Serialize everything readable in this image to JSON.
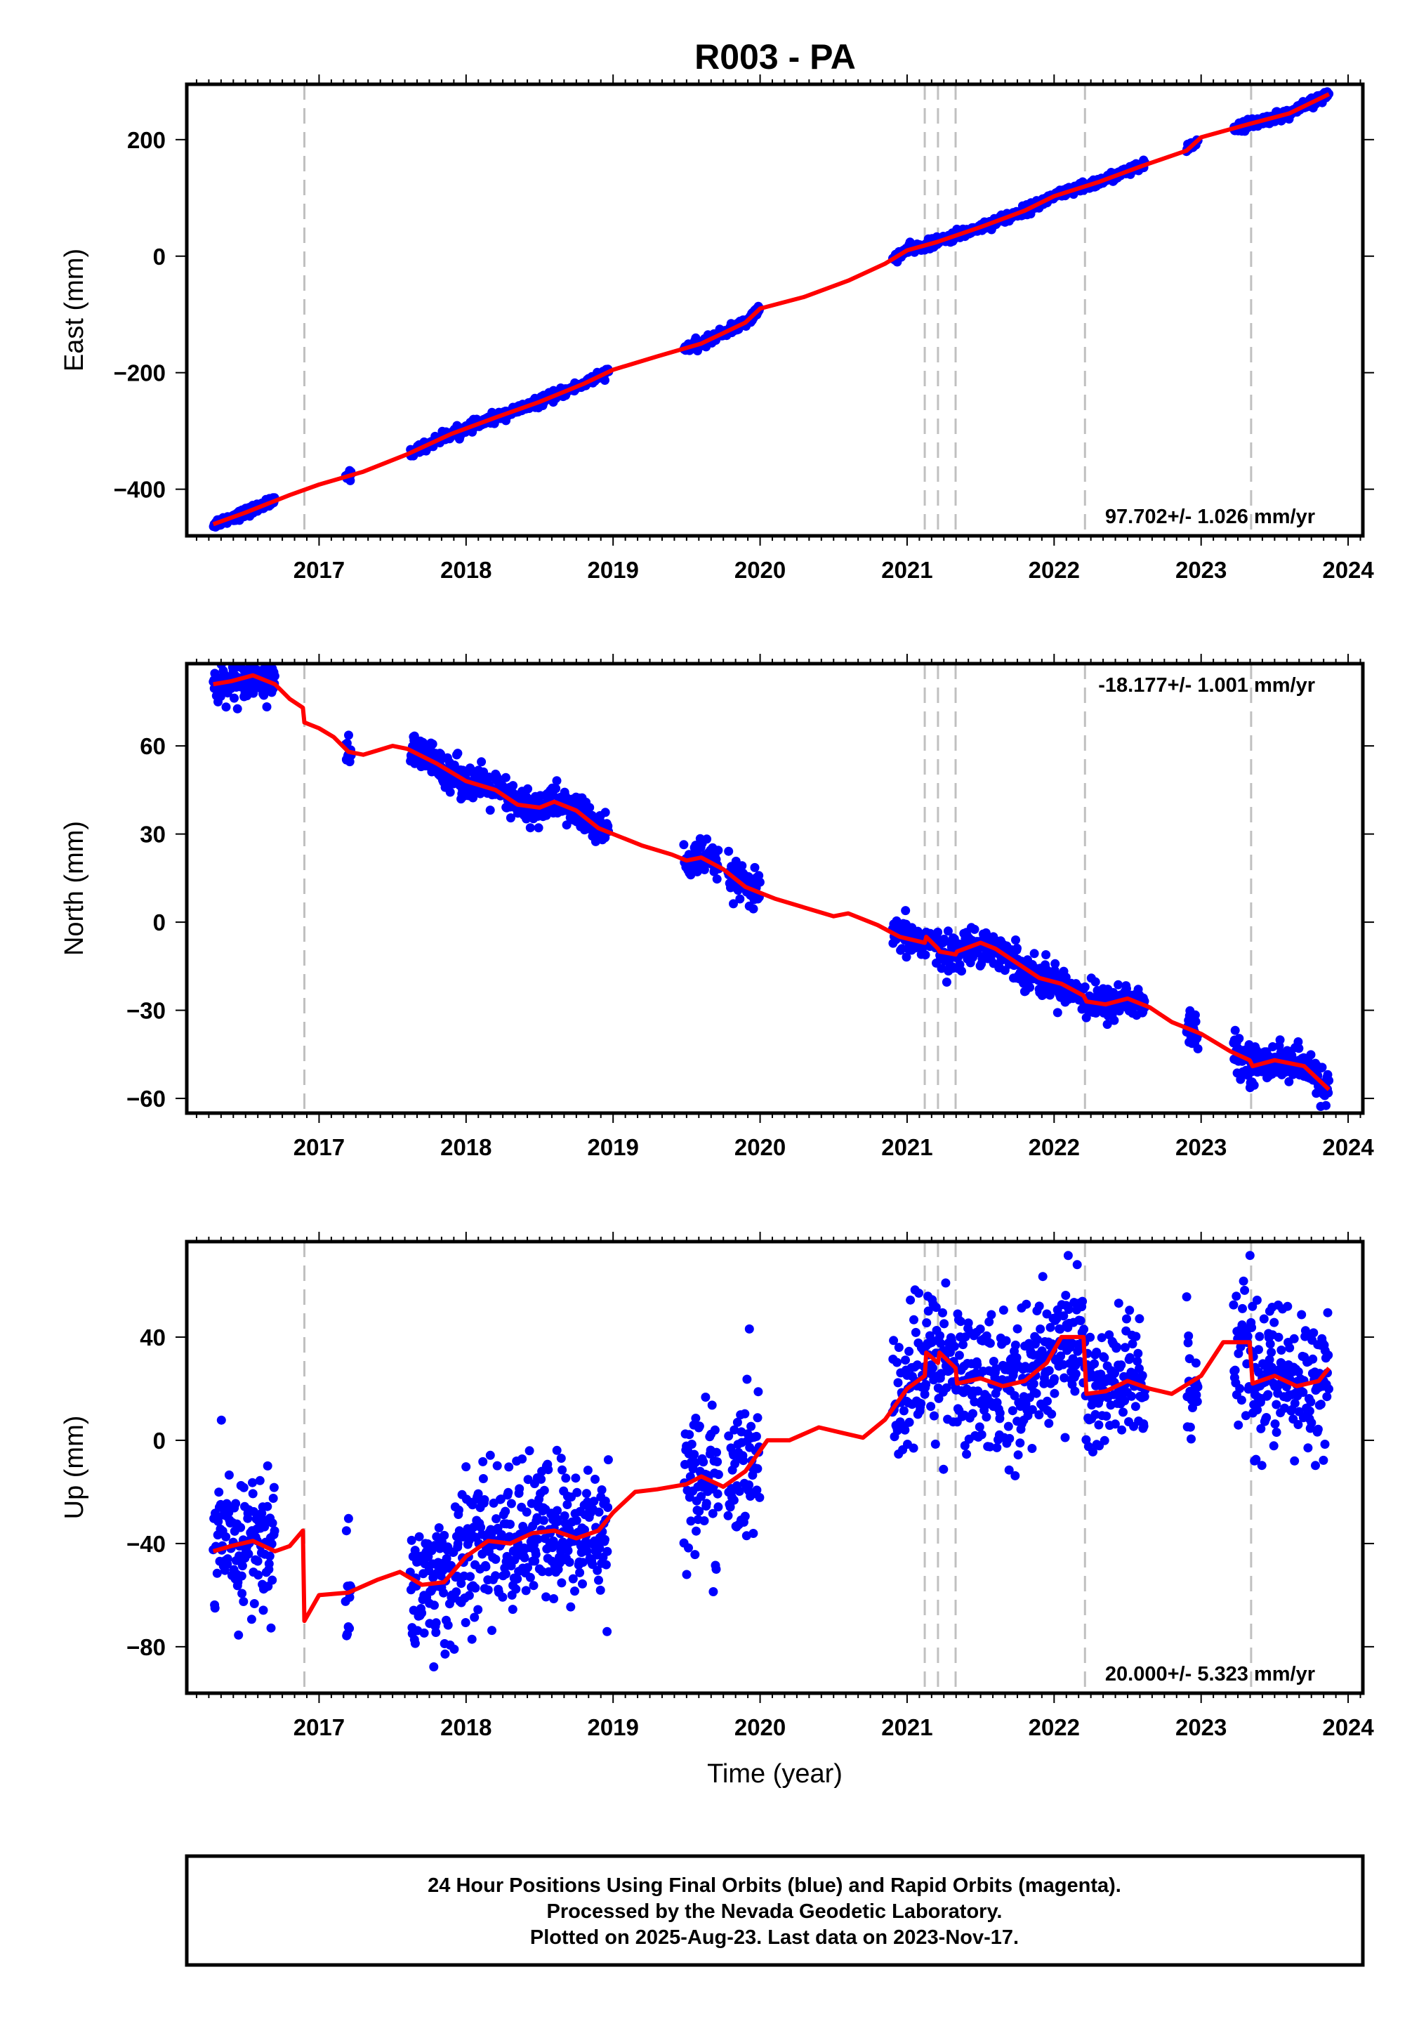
{
  "title": "R003 - PA",
  "colors": {
    "final_orbits": "#0000ff",
    "model": "#ff0000",
    "event_lines": "#c0c0c0",
    "frame": "#000000"
  },
  "footer": {
    "line1": "24 Hour Positions Using Final Orbits (blue) and Rapid Orbits (magenta).",
    "line2": "Processed by the Nevada Geodetic Laboratory.",
    "line3": "Plotted on 2025-Aug-23. Last data on 2023-Nov-17."
  },
  "chart_data": [
    {
      "type": "scatter",
      "component": "east",
      "ylabel": "East (mm)",
      "xlabel": "",
      "rate_label": "97.702+/- 1.026 mm/yr",
      "xlim": [
        2016.1,
        2024.1
      ],
      "ylim": [
        -480,
        295
      ],
      "xticks": [
        2017,
        2018,
        2019,
        2020,
        2021,
        2022,
        2023,
        2024
      ],
      "yticks": [
        -400,
        -200,
        0,
        200
      ],
      "event_lines": [
        2016.9,
        2021.12,
        2021.21,
        2021.33,
        2022.21,
        2023.34
      ],
      "series": [
        {
          "kind": "model",
          "x": [
            2016.28,
            2016.5,
            2016.8,
            2017.0,
            2017.3,
            2017.6,
            2017.9,
            2018.2,
            2018.5,
            2018.8,
            2019.0,
            2019.3,
            2019.6,
            2019.9,
            2020.0,
            2020.3,
            2020.6,
            2020.85,
            2021.0,
            2021.2,
            2021.5,
            2021.8,
            2022.0,
            2022.3,
            2022.6,
            2022.9,
            2023.0,
            2023.3,
            2023.6,
            2023.87
          ],
          "y": [
            -460,
            -440,
            -410,
            -392,
            -370,
            -340,
            -305,
            -277,
            -250,
            -219,
            -195,
            -172,
            -150,
            -114,
            -90,
            -70,
            -42,
            -13,
            10,
            24,
            50,
            78,
            103,
            127,
            155,
            181,
            204,
            225,
            245,
            278
          ]
        },
        {
          "kind": "observations",
          "segments": [
            [
              2016.28,
              2016.7
            ],
            [
              2017.18,
              2017.22
            ],
            [
              2017.62,
              2018.97
            ],
            [
              2019.48,
              2020.0
            ],
            [
              2020.9,
              2022.62
            ],
            [
              2022.9,
              2022.98
            ],
            [
              2023.22,
              2023.87
            ]
          ],
          "count": 1400,
          "scatter_mm": 4
        }
      ]
    },
    {
      "type": "scatter",
      "component": "north",
      "ylabel": "North (mm)",
      "xlabel": "",
      "rate_label": "-18.177+/- 1.001 mm/yr",
      "xlim": [
        2016.1,
        2024.1
      ],
      "ylim": [
        -65,
        88
      ],
      "xticks": [
        2017,
        2018,
        2019,
        2020,
        2021,
        2022,
        2023,
        2024
      ],
      "yticks": [
        -60,
        -30,
        0,
        30,
        60
      ],
      "event_lines": [
        2016.9,
        2021.12,
        2021.21,
        2021.33,
        2022.21,
        2023.34
      ],
      "series": [
        {
          "kind": "model",
          "x": [
            2016.28,
            2016.4,
            2016.55,
            2016.7,
            2016.8,
            2016.89,
            2016.9,
            2017.0,
            2017.1,
            2017.2,
            2017.3,
            2017.5,
            2017.6,
            2017.8,
            2018.0,
            2018.2,
            2018.35,
            2018.5,
            2018.6,
            2018.75,
            2018.9,
            2019.0,
            2019.2,
            2019.4,
            2019.5,
            2019.6,
            2019.75,
            2019.9,
            2020.0,
            2020.1,
            2020.3,
            2020.5,
            2020.6,
            2020.8,
            2020.95,
            2021.12,
            2021.13,
            2021.21,
            2021.22,
            2021.33,
            2021.34,
            2021.5,
            2021.6,
            2021.75,
            2021.9,
            2022.05,
            2022.2,
            2022.22,
            2022.35,
            2022.5,
            2022.65,
            2022.8,
            2023.0,
            2023.2,
            2023.33,
            2023.35,
            2023.5,
            2023.7,
            2023.87
          ],
          "y": [
            81,
            82,
            84,
            81,
            76,
            73,
            68,
            66,
            63,
            58,
            57,
            60,
            59,
            54,
            48,
            45,
            40,
            39,
            41,
            38,
            32,
            30,
            26,
            23,
            21,
            22,
            18,
            12,
            10,
            8,
            5,
            2,
            3,
            -1,
            -5,
            -7,
            -5,
            -9,
            -10,
            -11,
            -10,
            -7,
            -9,
            -14,
            -19,
            -21,
            -25,
            -27,
            -28,
            -26,
            -29,
            -34,
            -38,
            -44,
            -47,
            -49,
            -47,
            -49,
            -57
          ]
        },
        {
          "kind": "observations",
          "segments": [
            [
              2016.28,
              2016.7
            ],
            [
              2017.18,
              2017.22
            ],
            [
              2017.62,
              2018.97
            ],
            [
              2019.48,
              2019.72
            ],
            [
              2019.78,
              2020.0
            ],
            [
              2020.9,
              2022.62
            ],
            [
              2022.9,
              2022.98
            ],
            [
              2023.22,
              2023.87
            ]
          ],
          "count": 1400,
          "scatter_mm": 3
        }
      ]
    },
    {
      "type": "scatter",
      "component": "up",
      "ylabel": "Up (mm)",
      "xlabel": "Time (year)",
      "rate_label": "20.000+/- 5.323 mm/yr",
      "xlim": [
        2016.1,
        2024.1
      ],
      "ylim": [
        -98,
        77
      ],
      "xticks": [
        2017,
        2018,
        2019,
        2020,
        2021,
        2022,
        2023,
        2024
      ],
      "yticks": [
        -80,
        -40,
        0,
        40
      ],
      "event_lines": [
        2016.9,
        2021.12,
        2021.21,
        2021.33,
        2022.21,
        2023.34
      ],
      "series": [
        {
          "kind": "model",
          "x": [
            2016.28,
            2016.4,
            2016.55,
            2016.7,
            2016.8,
            2016.89,
            2016.9,
            2017.0,
            2017.2,
            2017.4,
            2017.55,
            2017.7,
            2017.85,
            2018.0,
            2018.15,
            2018.3,
            2018.45,
            2018.6,
            2018.75,
            2018.9,
            2019.0,
            2019.15,
            2019.3,
            2019.5,
            2019.6,
            2019.75,
            2019.9,
            2020.05,
            2020.2,
            2020.4,
            2020.55,
            2020.7,
            2020.85,
            2021.0,
            2021.12,
            2021.13,
            2021.21,
            2021.22,
            2021.33,
            2021.34,
            2021.5,
            2021.65,
            2021.8,
            2021.95,
            2022.05,
            2022.2,
            2022.22,
            2022.35,
            2022.5,
            2022.65,
            2022.8,
            2023.0,
            2023.15,
            2023.33,
            2023.35,
            2023.5,
            2023.65,
            2023.8,
            2023.87
          ],
          "y": [
            -43,
            -41,
            -39,
            -43,
            -41,
            -35,
            -70,
            -60,
            -59,
            -54,
            -51,
            -56,
            -55,
            -45,
            -39,
            -40,
            -36,
            -35,
            -38,
            -35,
            -28,
            -20,
            -19,
            -17,
            -14,
            -18,
            -12,
            0,
            0,
            5,
            3,
            1,
            8,
            20,
            25,
            34,
            30,
            34,
            28,
            22,
            24,
            21,
            23,
            30,
            40,
            40,
            18,
            19,
            23,
            20,
            18,
            25,
            38,
            38,
            22,
            25,
            21,
            23,
            28
          ]
        },
        {
          "kind": "observations",
          "segments": [
            [
              2016.28,
              2016.7
            ],
            [
              2017.18,
              2017.22
            ],
            [
              2017.62,
              2018.97
            ],
            [
              2019.48,
              2019.72
            ],
            [
              2019.78,
              2020.0
            ],
            [
              2020.9,
              2022.62
            ],
            [
              2022.9,
              2022.98
            ],
            [
              2023.22,
              2023.87
            ]
          ],
          "count": 1400,
          "scatter_mm": 14
        }
      ]
    }
  ]
}
